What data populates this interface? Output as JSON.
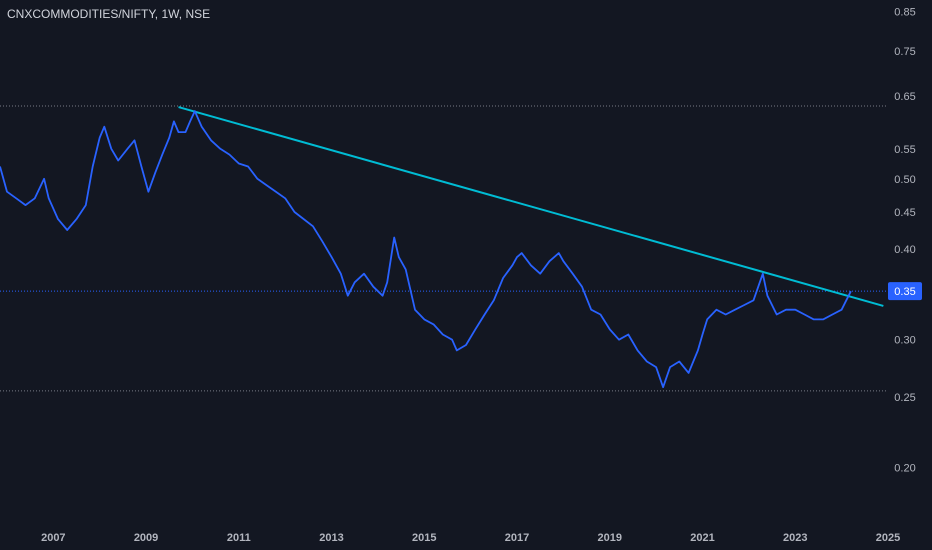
{
  "header": {
    "title": "CNXCOMMODITIES/NIFTY, 1W, NSE"
  },
  "colors": {
    "background": "#131722",
    "series": "#2962ff",
    "trendline": "#00bcd4",
    "level": "#787b86",
    "current_price": "#2962ff",
    "axis_text": "#b2b5be"
  },
  "chart_data": {
    "type": "line",
    "y_scale": "log",
    "ylim": [
      0.185,
      0.86
    ],
    "xlim": [
      2005.85,
      2025.0
    ],
    "yticks": [
      "0.85",
      "0.75",
      "0.65",
      "0.55",
      "0.50",
      "0.45",
      "0.40",
      "0.35",
      "0.30",
      "0.25",
      "0.20"
    ],
    "xticks": [
      "2007",
      "2009",
      "2011",
      "2013",
      "2015",
      "2017",
      "2019",
      "2021",
      "2023",
      "2025"
    ],
    "current_price": {
      "value": 0.35,
      "label": "0.35"
    },
    "levels": [
      0.63,
      0.255
    ],
    "trendline": {
      "x": [
        2009.7,
        2024.9
      ],
      "y": [
        0.628,
        0.334
      ]
    },
    "series": [
      {
        "points": [
          [
            2005.85,
            0.52
          ],
          [
            2006.0,
            0.48
          ],
          [
            2006.2,
            0.47
          ],
          [
            2006.4,
            0.46
          ],
          [
            2006.6,
            0.47
          ],
          [
            2006.8,
            0.5
          ],
          [
            2006.9,
            0.47
          ],
          [
            2007.1,
            0.44
          ],
          [
            2007.3,
            0.425
          ],
          [
            2007.5,
            0.44
          ],
          [
            2007.7,
            0.46
          ],
          [
            2007.85,
            0.52
          ],
          [
            2008.0,
            0.57
          ],
          [
            2008.1,
            0.59
          ],
          [
            2008.25,
            0.55
          ],
          [
            2008.4,
            0.53
          ],
          [
            2008.6,
            0.55
          ],
          [
            2008.75,
            0.565
          ],
          [
            2008.9,
            0.52
          ],
          [
            2009.05,
            0.48
          ],
          [
            2009.2,
            0.51
          ],
          [
            2009.35,
            0.54
          ],
          [
            2009.5,
            0.57
          ],
          [
            2009.6,
            0.6
          ],
          [
            2009.7,
            0.58
          ],
          [
            2009.85,
            0.58
          ],
          [
            2009.95,
            0.6
          ],
          [
            2010.05,
            0.62
          ],
          [
            2010.2,
            0.59
          ],
          [
            2010.4,
            0.565
          ],
          [
            2010.6,
            0.55
          ],
          [
            2010.8,
            0.54
          ],
          [
            2011.0,
            0.525
          ],
          [
            2011.2,
            0.52
          ],
          [
            2011.4,
            0.5
          ],
          [
            2011.6,
            0.49
          ],
          [
            2011.8,
            0.48
          ],
          [
            2012.0,
            0.47
          ],
          [
            2012.2,
            0.45
          ],
          [
            2012.4,
            0.44
          ],
          [
            2012.6,
            0.43
          ],
          [
            2012.8,
            0.41
          ],
          [
            2013.0,
            0.39
          ],
          [
            2013.2,
            0.37
          ],
          [
            2013.35,
            0.345
          ],
          [
            2013.5,
            0.36
          ],
          [
            2013.7,
            0.37
          ],
          [
            2013.9,
            0.355
          ],
          [
            2014.1,
            0.345
          ],
          [
            2014.2,
            0.36
          ],
          [
            2014.35,
            0.415
          ],
          [
            2014.45,
            0.39
          ],
          [
            2014.6,
            0.375
          ],
          [
            2014.8,
            0.33
          ],
          [
            2015.0,
            0.32
          ],
          [
            2015.2,
            0.315
          ],
          [
            2015.4,
            0.305
          ],
          [
            2015.6,
            0.3
          ],
          [
            2015.7,
            0.29
          ],
          [
            2015.9,
            0.295
          ],
          [
            2016.1,
            0.31
          ],
          [
            2016.3,
            0.325
          ],
          [
            2016.5,
            0.34
          ],
          [
            2016.7,
            0.365
          ],
          [
            2016.9,
            0.38
          ],
          [
            2017.0,
            0.39
          ],
          [
            2017.1,
            0.395
          ],
          [
            2017.3,
            0.38
          ],
          [
            2017.5,
            0.37
          ],
          [
            2017.7,
            0.385
          ],
          [
            2017.9,
            0.395
          ],
          [
            2018.0,
            0.385
          ],
          [
            2018.2,
            0.37
          ],
          [
            2018.4,
            0.355
          ],
          [
            2018.6,
            0.33
          ],
          [
            2018.8,
            0.325
          ],
          [
            2019.0,
            0.31
          ],
          [
            2019.2,
            0.3
          ],
          [
            2019.4,
            0.305
          ],
          [
            2019.6,
            0.29
          ],
          [
            2019.8,
            0.28
          ],
          [
            2020.0,
            0.275
          ],
          [
            2020.15,
            0.258
          ],
          [
            2020.3,
            0.275
          ],
          [
            2020.5,
            0.28
          ],
          [
            2020.7,
            0.27
          ],
          [
            2020.9,
            0.29
          ],
          [
            2021.0,
            0.305
          ],
          [
            2021.1,
            0.32
          ],
          [
            2021.3,
            0.33
          ],
          [
            2021.5,
            0.325
          ],
          [
            2021.7,
            0.33
          ],
          [
            2021.9,
            0.335
          ],
          [
            2022.1,
            0.34
          ],
          [
            2022.3,
            0.37
          ],
          [
            2022.4,
            0.345
          ],
          [
            2022.6,
            0.325
          ],
          [
            2022.8,
            0.33
          ],
          [
            2023.0,
            0.33
          ],
          [
            2023.2,
            0.325
          ],
          [
            2023.4,
            0.32
          ],
          [
            2023.6,
            0.32
          ],
          [
            2023.8,
            0.325
          ],
          [
            2024.0,
            0.33
          ],
          [
            2024.1,
            0.34
          ],
          [
            2024.2,
            0.35
          ]
        ]
      }
    ]
  }
}
